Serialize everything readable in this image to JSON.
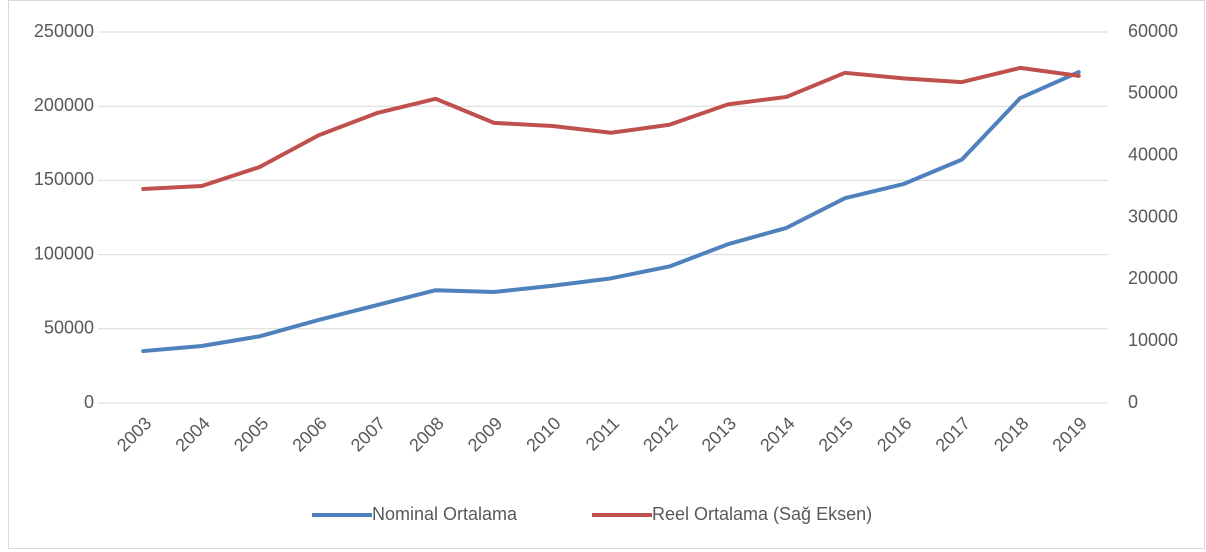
{
  "chart_data": {
    "type": "line",
    "categories": [
      "2003",
      "2004",
      "2005",
      "2006",
      "2007",
      "2008",
      "2009",
      "2010",
      "2011",
      "2012",
      "2013",
      "2014",
      "2015",
      "2016",
      "2017",
      "2018",
      "2019"
    ],
    "series": [
      {
        "name": "Nominal Ortalama",
        "color": "#4f81bd",
        "values": [
          35000,
          38400,
          45000,
          56000,
          66000,
          76000,
          74800,
          79000,
          84000,
          92000,
          107000,
          118000,
          138000,
          147500,
          164000,
          205500,
          223000
        ]
      },
      {
        "name": "Reel Ortalama (Sağ Eksen)",
        "color": "#c0504d",
        "axis": "y2",
        "values": [
          34600,
          35100,
          38200,
          43300,
          46900,
          49200,
          45300,
          44800,
          43700,
          45000,
          48300,
          49500,
          53400,
          52500,
          51900,
          54200,
          52900
        ]
      }
    ],
    "ylim": [
      0,
      250000
    ],
    "yticks": [
      0,
      50000,
      100000,
      150000,
      200000,
      250000
    ],
    "y2lim": [
      0,
      60000
    ],
    "y2ticks": [
      0,
      10000,
      20000,
      30000,
      40000,
      50000,
      60000
    ],
    "grid": true,
    "legend": "bottom"
  }
}
